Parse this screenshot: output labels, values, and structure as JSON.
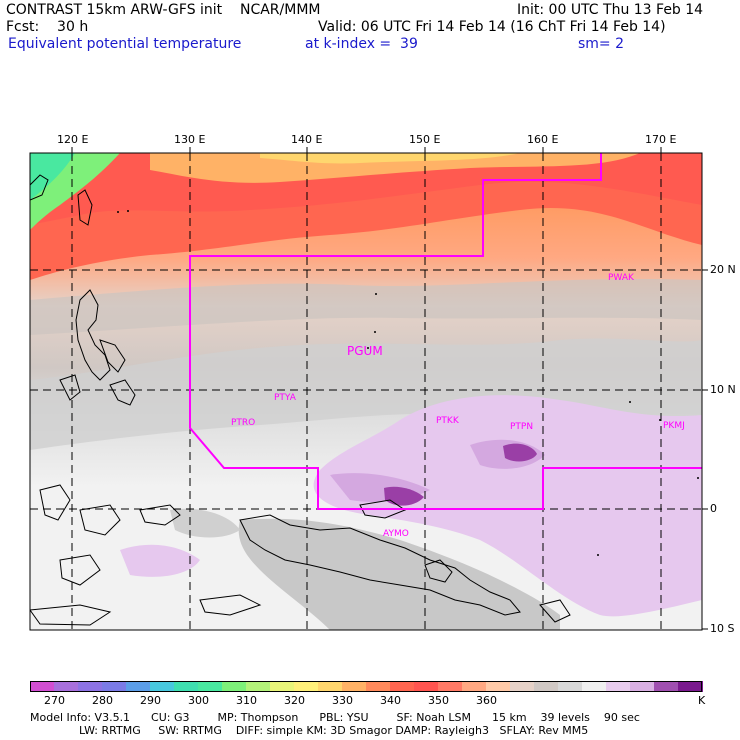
{
  "header": {
    "line1_left": "CONTRAST 15km ARW-GFS init    NCAR/MMM",
    "line1_right": "Init: 00 UTC Thu 13 Feb 14",
    "line2_left": "Fcst:    30 h",
    "line2_right": "Valid: 06 UTC Fri 14 Feb 14 (16 ChT Fri 14 Feb 14)",
    "line3_field": "Equivalent potential temperature",
    "line3_level": "at k-index =  39",
    "line3_smooth": "sm= 2"
  },
  "map": {
    "lon_labels": [
      "120 E",
      "130 E",
      "140 E",
      "150 E",
      "160 E",
      "170 E"
    ],
    "lat_labels": [
      "20 N",
      "10 N",
      "0",
      "10 S"
    ],
    "stations": [
      "PWAK",
      "PGUM",
      "PTYA",
      "PTRO",
      "PTKK",
      "PTPN",
      "PKMJ",
      "AYMO"
    ]
  },
  "colorbar": {
    "colors": [
      "#d24fd2",
      "#a870dc",
      "#8d73e4",
      "#7b7be6",
      "#5c9ee8",
      "#48c8de",
      "#3fdfb0",
      "#49e8a0",
      "#7ef07a",
      "#b3f27a",
      "#e9f57a",
      "#fff07a",
      "#ffd66e",
      "#ffb266",
      "#ff8a5c",
      "#ff6650",
      "#ff5550",
      "#ff7a66",
      "#ffa882",
      "#ffcaa8",
      "#e6d2c8",
      "#d0c8c4",
      "#d8d8d8",
      "#f0f0f0",
      "#e8ccee",
      "#d9b0e3",
      "#a050b0",
      "#7a1a8e"
    ],
    "labels": [
      "270",
      "280",
      "290",
      "300",
      "310",
      "320",
      "330",
      "340",
      "350",
      "360",
      "K"
    ]
  },
  "model_info": {
    "line1": "Model Info: V3.5.1      CU: G3        MP: Thompson      PBL: YSU        SF: Noah LSM      15 km    39 levels    90 sec",
    "line2": "              LW: RRTMG     SW: RRTMG    DIFF: simple KM: 3D Smagor DAMP: Rayleigh3   SFLAY: Rev MM5"
  }
}
